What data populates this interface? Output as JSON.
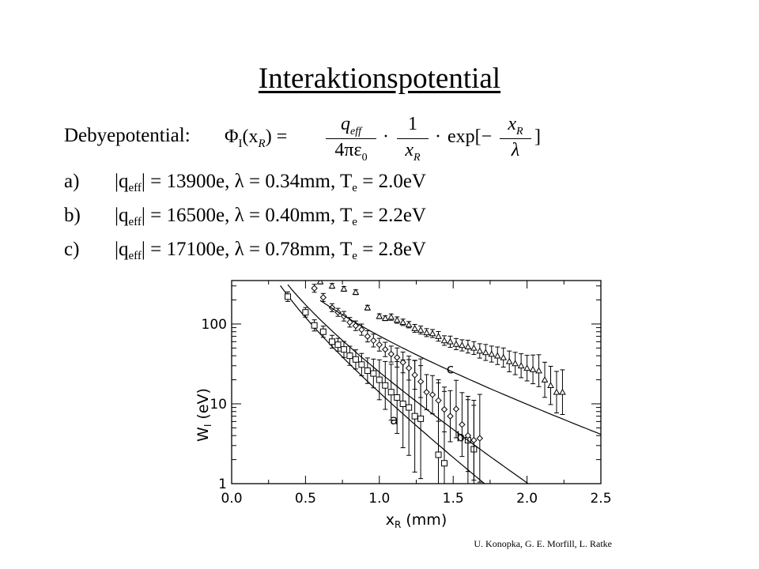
{
  "title": "Interaktionspotential",
  "debye": {
    "label": "Debyepotential:",
    "formula": {
      "lhs": "Φ",
      "lhs_sub": "I",
      "lhs_arg": "(x",
      "lhs_arg_sub": "R",
      "lhs_close": ") =",
      "frac1_num": "q",
      "frac1_num_sub": "eff",
      "frac1_den": "4πε",
      "frac1_den_sub": "0",
      "dot1": "·",
      "frac2_num": "1",
      "frac2_den": "x",
      "frac2_den_sub": "R",
      "dot2": "·",
      "exp": "exp[−",
      "frac3_num": "x",
      "frac3_num_sub": "R",
      "frac3_den": "λ",
      "close": "]"
    }
  },
  "params": [
    {
      "label": "a)",
      "q_pre": "|q",
      "q_sub": "eff",
      "rest1": "| = 13900e, λ = 0.34mm, T",
      "t_sub": "e",
      "rest2": " = 2.0eV"
    },
    {
      "label": "b)",
      "q_pre": "|q",
      "q_sub": "eff",
      "rest1": "| = 16500e, λ = 0.40mm, T",
      "t_sub": "e",
      "rest2": " = 2.2eV"
    },
    {
      "label": "c)",
      "q_pre": "|q",
      "q_sub": "eff",
      "rest1": "| = 17100e, λ = 0.78mm, T",
      "t_sub": "e",
      "rest2": " = 2.8eV"
    }
  ],
  "chart_data": {
    "type": "scatter",
    "scale_y": "log",
    "xlim": [
      0.0,
      2.5
    ],
    "ylim": [
      1,
      350
    ],
    "xlabel": "x",
    "xlabel_sub": "R",
    "xlabel_unit": "(mm)",
    "ylabel": "W",
    "ylabel_sub": "I",
    "ylabel_unit": "(eV)",
    "x_ticks": [
      "0.0",
      "0.5",
      "1.0",
      "1.5",
      "2.0",
      "2.5"
    ],
    "y_ticks": [
      "1",
      "10",
      "100"
    ],
    "y_tick_values": [
      1,
      10,
      100
    ],
    "series": [
      {
        "name": "a",
        "marker": "square",
        "fit_x": [
          0.33,
          1.82
        ],
        "fit_y_at_1mm": 13.9,
        "x": [
          0.38,
          0.5,
          0.56,
          0.62,
          0.68,
          0.72,
          0.76,
          0.8,
          0.84,
          0.88,
          0.92,
          0.96,
          1.0,
          1.04,
          1.08,
          1.12,
          1.16,
          1.2,
          1.24,
          1.28,
          1.4,
          1.44,
          1.6,
          1.64
        ],
        "y": [
          220,
          140,
          96,
          80,
          60,
          55,
          48,
          40,
          36,
          31,
          26,
          24,
          20,
          17,
          14,
          12,
          10,
          9,
          7.0,
          6.5,
          2.3,
          1.8,
          3.5,
          2.7
        ],
        "err": [
          0.06,
          0.06,
          0.07,
          0.07,
          0.08,
          0.08,
          0.1,
          0.12,
          0.12,
          0.14,
          0.16,
          0.18,
          0.25,
          0.3,
          0.35,
          0.45,
          0.55,
          0.6,
          0.7,
          0.75,
          0.9,
          0.9,
          0.55,
          0.55
        ]
      },
      {
        "name": "b",
        "marker": "diamond",
        "fit_x": [
          0.38,
          2.25
        ],
        "fit_y_at_1mm": 25.0,
        "x": [
          0.56,
          0.62,
          0.68,
          0.72,
          0.76,
          0.8,
          0.84,
          0.88,
          0.92,
          0.96,
          1.0,
          1.04,
          1.08,
          1.12,
          1.16,
          1.2,
          1.24,
          1.28,
          1.32,
          1.36,
          1.4,
          1.44,
          1.48,
          1.52,
          1.56,
          1.6,
          1.64,
          1.68
        ],
        "y": [
          280,
          215,
          160,
          140,
          125,
          105,
          95,
          85,
          70,
          62,
          55,
          48,
          42,
          38,
          33,
          28,
          23,
          19,
          14,
          13,
          11,
          8.5,
          7.0,
          8.6,
          5.5,
          4.0,
          3.5,
          3.7
        ],
        "err": [
          0.05,
          0.05,
          0.05,
          0.05,
          0.06,
          0.06,
          0.06,
          0.07,
          0.07,
          0.08,
          0.08,
          0.09,
          0.1,
          0.12,
          0.13,
          0.15,
          0.18,
          0.2,
          0.22,
          0.24,
          0.26,
          0.28,
          0.32,
          0.36,
          0.4,
          0.45,
          0.5,
          0.55
        ]
      },
      {
        "name": "c",
        "marker": "triangle",
        "fit_x": [
          0.6,
          2.5
        ],
        "fit_y_at_1mm": 71.0,
        "x": [
          0.6,
          0.68,
          0.76,
          0.84,
          0.92,
          1.0,
          1.04,
          1.08,
          1.12,
          1.16,
          1.2,
          1.24,
          1.28,
          1.32,
          1.36,
          1.4,
          1.44,
          1.48,
          1.52,
          1.56,
          1.6,
          1.64,
          1.68,
          1.72,
          1.76,
          1.8,
          1.84,
          1.88,
          1.92,
          1.96,
          2.0,
          2.04,
          2.08,
          2.12,
          2.16,
          2.2,
          2.24
        ],
        "y": [
          340,
          300,
          275,
          250,
          160,
          125,
          118,
          122,
          112,
          105,
          98,
          88,
          84,
          78,
          76,
          70,
          62,
          60,
          56,
          54,
          52,
          50,
          46,
          44,
          42,
          40,
          38,
          34,
          32,
          30,
          28,
          27,
          26,
          20,
          17,
          14,
          14
        ],
        "err": [
          0.03,
          0.03,
          0.03,
          0.03,
          0.03,
          0.03,
          0.03,
          0.04,
          0.04,
          0.04,
          0.04,
          0.05,
          0.05,
          0.05,
          0.05,
          0.06,
          0.06,
          0.07,
          0.07,
          0.07,
          0.08,
          0.08,
          0.09,
          0.1,
          0.1,
          0.11,
          0.12,
          0.13,
          0.14,
          0.15,
          0.16,
          0.18,
          0.2,
          0.22,
          0.24,
          0.26,
          0.28
        ]
      }
    ]
  },
  "credit": "U. Konopka, G. E. Morfill, L. Ratke"
}
